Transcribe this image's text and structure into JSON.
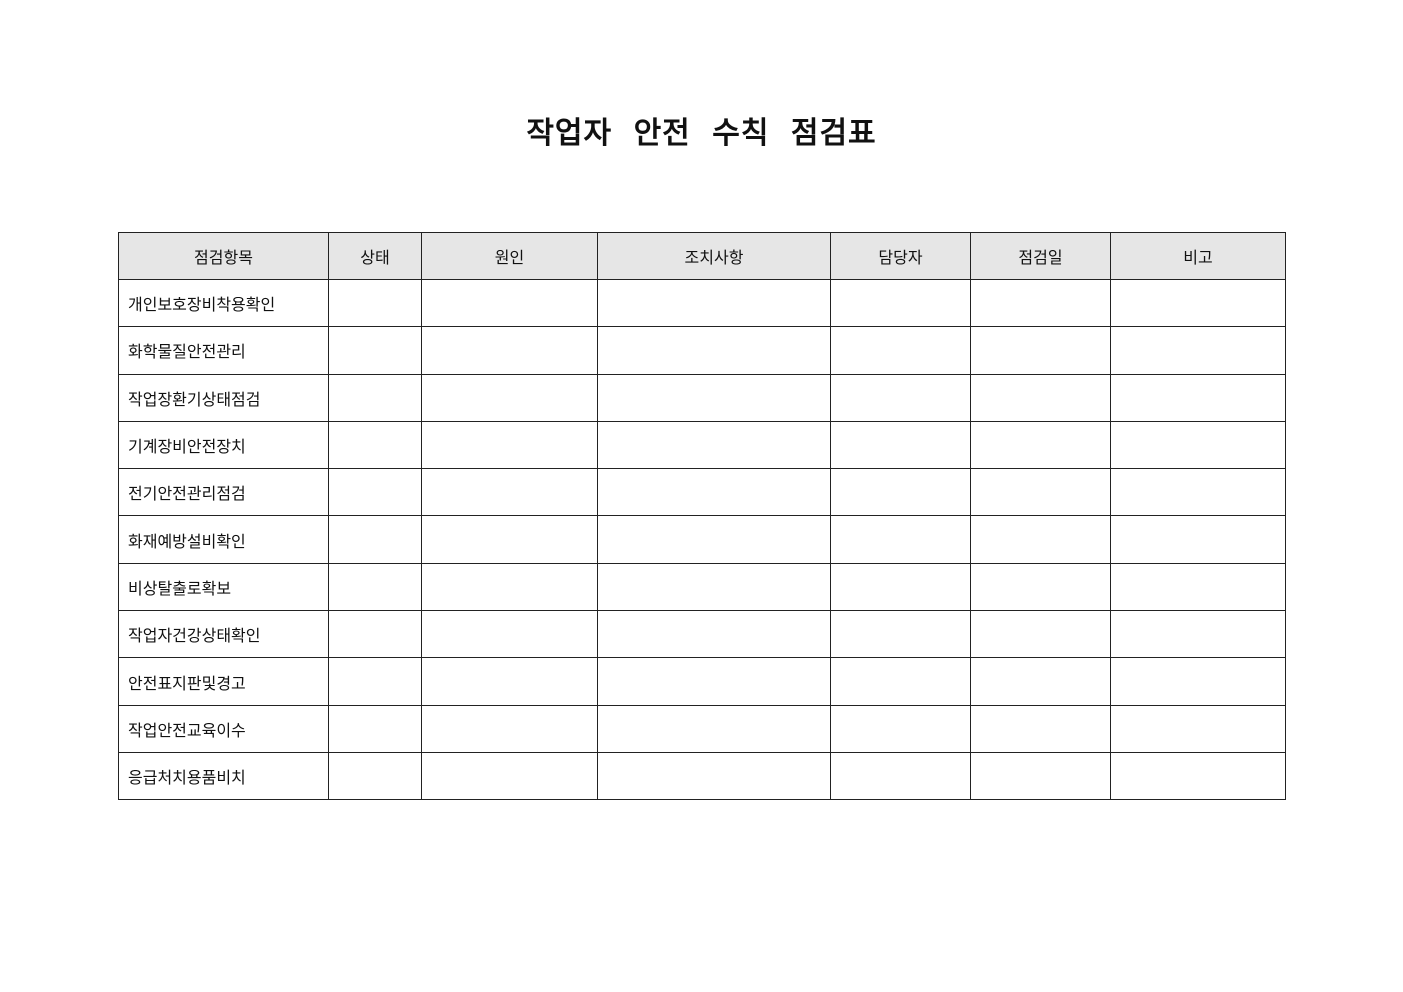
{
  "document": {
    "title": "작업자 안전 수칙 점검표",
    "table": {
      "headers": [
        "점검항목",
        "상태",
        "원인",
        "조치사항",
        "담당자",
        "점검일",
        "비고"
      ],
      "header_background": "#e6e6e6",
      "rows": [
        {
          "item": "개인보호장비착용확인"
        },
        {
          "item": "화학물질안전관리"
        },
        {
          "item": "작업장환기상태점검"
        },
        {
          "item": "기계장비안전장치"
        },
        {
          "item": "전기안전관리점검"
        },
        {
          "item": "화재예방설비확인"
        },
        {
          "item": "비상탈출로확보"
        },
        {
          "item": "작업자건강상태확인"
        },
        {
          "item": "안전표지판및경고"
        },
        {
          "item": "작업안전교육이수"
        },
        {
          "item": "응급처치용품비치"
        }
      ]
    }
  }
}
